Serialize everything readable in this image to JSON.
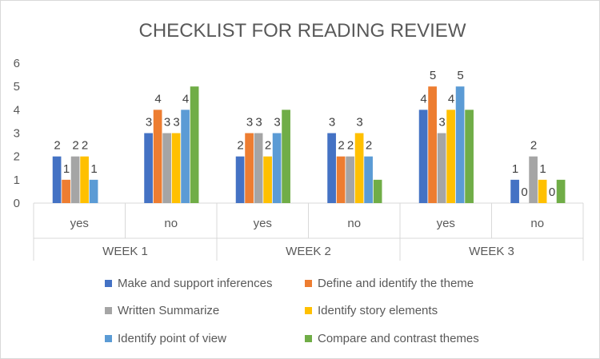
{
  "chart_data": {
    "type": "bar",
    "title": "CHECKLIST FOR READING REVIEW",
    "ylim": [
      0,
      6
    ],
    "yticks": [
      0,
      1,
      2,
      3,
      4,
      5,
      6
    ],
    "grid": false,
    "legend_position": "bottom",
    "groups": [
      "WEEK 1",
      "WEEK 2",
      "WEEK 3"
    ],
    "categories": [
      "yes",
      "no",
      "yes",
      "no",
      "yes",
      "no"
    ],
    "series": [
      {
        "name": "Make and support inferences",
        "color": "#4472C4",
        "values": [
          2,
          3,
          2,
          3,
          4,
          1
        ]
      },
      {
        "name": "Define and identify the theme",
        "color": "#ED7D31",
        "values": [
          1,
          4,
          3,
          2,
          5,
          0
        ]
      },
      {
        "name": "Written Summarize",
        "color": "#A5A5A5",
        "values": [
          2,
          3,
          3,
          2,
          3,
          2
        ]
      },
      {
        "name": "Identify story elements",
        "color": "#FFC000",
        "values": [
          2,
          3,
          2,
          3,
          4,
          1
        ]
      },
      {
        "name": "Identify point of view",
        "color": "#5B9BD5",
        "values": [
          1,
          4,
          3,
          2,
          5,
          0
        ]
      },
      {
        "name": "Compare and contrast themes",
        "color": "#70AD47",
        "values": [
          null,
          5,
          4,
          1,
          4,
          1
        ]
      }
    ],
    "data_labels": [
      [
        "2",
        "3",
        "2",
        "3",
        "4",
        "1"
      ],
      [
        "1",
        "4",
        "3",
        "2",
        "5",
        "0"
      ],
      [
        "2",
        "3",
        "3",
        "2",
        "3",
        "2"
      ],
      [
        "2",
        "3",
        "2",
        "3",
        "4",
        "1"
      ],
      [
        "1",
        "4",
        "3",
        "2",
        "5",
        "0"
      ],
      [
        "",
        "",
        "",
        "",
        "",
        ""
      ]
    ]
  }
}
